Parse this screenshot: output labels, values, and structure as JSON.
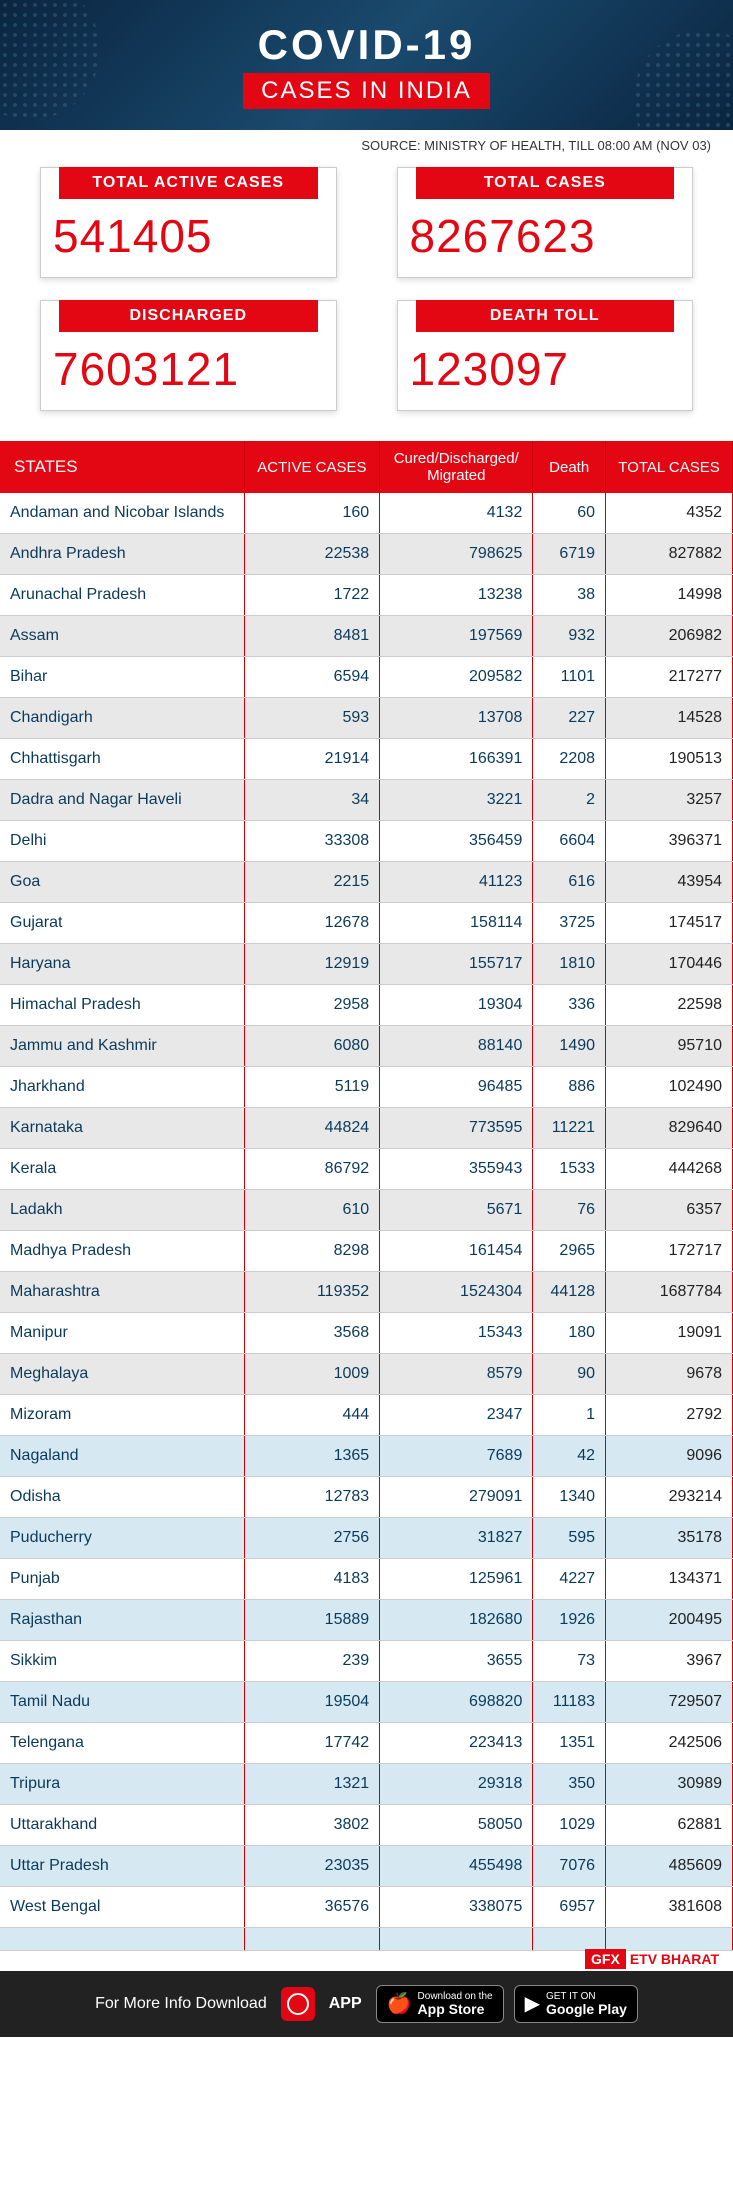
{
  "hero": {
    "title": "COVID-19",
    "subtitle": "CASES IN INDIA"
  },
  "source": "SOURCE: MINISTRY OF HEALTH, TILL 08:00 AM (NOV 03)",
  "stats": [
    {
      "label": "TOTAL ACTIVE CASES",
      "value": "541405"
    },
    {
      "label": "TOTAL CASES",
      "value": "8267623"
    },
    {
      "label": "DISCHARGED",
      "value": "7603121"
    },
    {
      "label": "DEATH TOLL",
      "value": "123097"
    }
  ],
  "columns": [
    "STATES",
    "ACTIVE CASES",
    "Cured/Discharged/\nMigrated",
    "Death",
    "TOTAL CASES"
  ],
  "rows": [
    {
      "c": "w",
      "d": [
        "Andaman and Nicobar Islands",
        "160",
        "4132",
        "60",
        "4352"
      ]
    },
    {
      "c": "g",
      "d": [
        "Andhra Pradesh",
        "22538",
        "798625",
        "6719",
        "827882"
      ]
    },
    {
      "c": "w",
      "d": [
        "Arunachal Pradesh",
        "1722",
        "13238",
        "38",
        "14998"
      ]
    },
    {
      "c": "g",
      "d": [
        "Assam",
        "8481",
        "197569",
        "932",
        "206982"
      ]
    },
    {
      "c": "w",
      "d": [
        "Bihar",
        "6594",
        "209582",
        "1101",
        "217277"
      ]
    },
    {
      "c": "g",
      "d": [
        "Chandigarh",
        "593",
        "13708",
        "227",
        "14528"
      ]
    },
    {
      "c": "w",
      "d": [
        "Chhattisgarh",
        "21914",
        "166391",
        "2208",
        "190513"
      ]
    },
    {
      "c": "g",
      "d": [
        "Dadra and Nagar Haveli",
        "34",
        "3221",
        "2",
        "3257"
      ]
    },
    {
      "c": "w",
      "d": [
        "Delhi",
        "33308",
        "356459",
        "6604",
        "396371"
      ]
    },
    {
      "c": "g",
      "d": [
        "Goa",
        "2215",
        "41123",
        "616",
        "43954"
      ]
    },
    {
      "c": "w",
      "d": [
        "Gujarat",
        "12678",
        "158114",
        "3725",
        "174517"
      ]
    },
    {
      "c": "g",
      "d": [
        "Haryana",
        "12919",
        "155717",
        "1810",
        "170446"
      ]
    },
    {
      "c": "w",
      "d": [
        "Himachal Pradesh",
        "2958",
        "19304",
        "336",
        "22598"
      ]
    },
    {
      "c": "g",
      "d": [
        "Jammu and Kashmir",
        "6080",
        "88140",
        "1490",
        "95710"
      ]
    },
    {
      "c": "w",
      "d": [
        "Jharkhand",
        "5119",
        "96485",
        "886",
        "102490"
      ]
    },
    {
      "c": "g",
      "d": [
        "Karnataka",
        "44824",
        "773595",
        "11221",
        "829640"
      ]
    },
    {
      "c": "w",
      "d": [
        "Kerala",
        "86792",
        "355943",
        "1533",
        "444268"
      ]
    },
    {
      "c": "g",
      "d": [
        "Ladakh",
        "610",
        "5671",
        "76",
        "6357"
      ]
    },
    {
      "c": "w",
      "d": [
        "Madhya Pradesh",
        "8298",
        "161454",
        "2965",
        "172717"
      ]
    },
    {
      "c": "g",
      "d": [
        "Maharashtra",
        "119352",
        "1524304",
        "44128",
        "1687784"
      ]
    },
    {
      "c": "w",
      "d": [
        "Manipur",
        "3568",
        "15343",
        "180",
        "19091"
      ]
    },
    {
      "c": "g",
      "d": [
        "Meghalaya",
        "1009",
        "8579",
        "90",
        "9678"
      ]
    },
    {
      "c": "w",
      "d": [
        "Mizoram",
        "444",
        "2347",
        "1",
        "2792"
      ]
    },
    {
      "c": "b",
      "d": [
        "Nagaland",
        "1365",
        "7689",
        "42",
        "9096"
      ]
    },
    {
      "c": "w",
      "d": [
        "Odisha",
        "12783",
        "279091",
        "1340",
        "293214"
      ]
    },
    {
      "c": "b",
      "d": [
        "Puducherry",
        "2756",
        "31827",
        "595",
        "35178"
      ]
    },
    {
      "c": "w",
      "d": [
        "Punjab",
        "4183",
        "125961",
        "4227",
        "134371"
      ]
    },
    {
      "c": "b",
      "d": [
        "Rajasthan",
        "15889",
        "182680",
        "1926",
        "200495"
      ]
    },
    {
      "c": "w",
      "d": [
        "Sikkim",
        "239",
        "3655",
        "73",
        "3967"
      ]
    },
    {
      "c": "b",
      "d": [
        "Tamil Nadu",
        "19504",
        "698820",
        "11183",
        "729507"
      ]
    },
    {
      "c": "w",
      "d": [
        "Telengana",
        "17742",
        "223413",
        "1351",
        "242506"
      ]
    },
    {
      "c": "b",
      "d": [
        "Tripura",
        "1321",
        "29318",
        "350",
        "30989"
      ]
    },
    {
      "c": "w",
      "d": [
        "Uttarakhand",
        "3802",
        "58050",
        "1029",
        "62881"
      ]
    },
    {
      "c": "b",
      "d": [
        "Uttar Pradesh",
        "23035",
        "455498",
        "7076",
        "485609"
      ]
    },
    {
      "c": "w",
      "d": [
        "West Bengal",
        "36576",
        "338075",
        "6957",
        "381608"
      ]
    },
    {
      "c": "b",
      "d": [
        "",
        "",
        "",
        "",
        ""
      ]
    }
  ],
  "gfx": {
    "a": "GFX",
    "b": "ETV BHARAT"
  },
  "footer": {
    "text": "For More Info Download",
    "app": "APP",
    "stores": [
      {
        "top": "Download on the",
        "bottom": "App Store",
        "icon": "🍎"
      },
      {
        "top": "GET IT ON",
        "bottom": "Google Play",
        "icon": "▶"
      }
    ]
  }
}
